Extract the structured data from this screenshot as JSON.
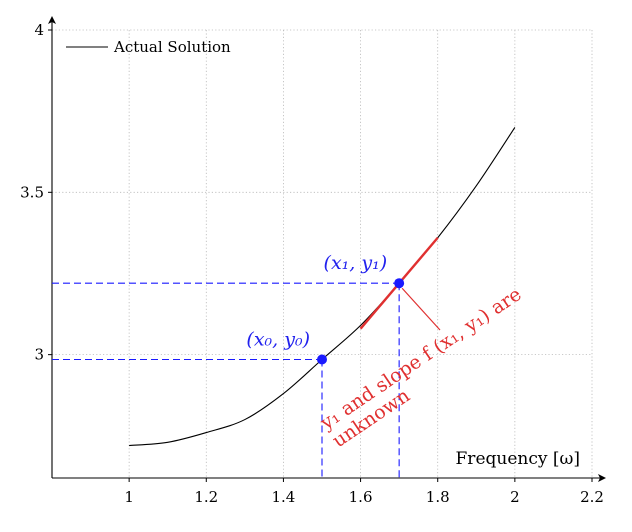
{
  "chart_data": {
    "type": "line",
    "xlabel": "Frequency [ω]",
    "xlim": [
      0.8,
      2.2
    ],
    "ylim": [
      2.62,
      4.0
    ],
    "xticks": [
      1,
      1.2,
      1.4,
      1.6,
      1.8,
      2.0,
      2.2
    ],
    "xtick_labels": [
      "1",
      "1.2",
      "1.4",
      "1.6",
      "1.8",
      "2",
      "2.2"
    ],
    "yticks": [
      3,
      3.5,
      4
    ],
    "ytick_labels": [
      "3",
      "3.5",
      "4"
    ],
    "grid": true,
    "legend": {
      "position": "top-left",
      "entries": [
        "Actual Solution"
      ]
    },
    "series": [
      {
        "name": "Actual Solution",
        "color": "#000000",
        "x": [
          1.0,
          1.1,
          1.2,
          1.3,
          1.4,
          1.5,
          1.6,
          1.7,
          1.8,
          1.9,
          2.0
        ],
        "y": [
          2.72,
          2.73,
          2.76,
          2.8,
          2.88,
          2.985,
          3.09,
          3.22,
          3.36,
          3.52,
          3.7
        ]
      }
    ],
    "points": [
      {
        "label": "(x₀, y₀)",
        "x": 1.5,
        "y": 2.985,
        "color": "#1a1aff"
      },
      {
        "label": "(x₁, y₁)",
        "x": 1.7,
        "y": 3.22,
        "color": "#1a1aff"
      }
    ],
    "tangent": {
      "x_start": 1.6,
      "x_end": 1.8,
      "at_x": 1.7,
      "at_y": 3.22,
      "slope": 1.4,
      "color": "#e03030"
    },
    "annotation": {
      "line1": "y₁ and slope f (x₁, y₁) are",
      "line2": "unknown",
      "color": "#e03030"
    }
  }
}
